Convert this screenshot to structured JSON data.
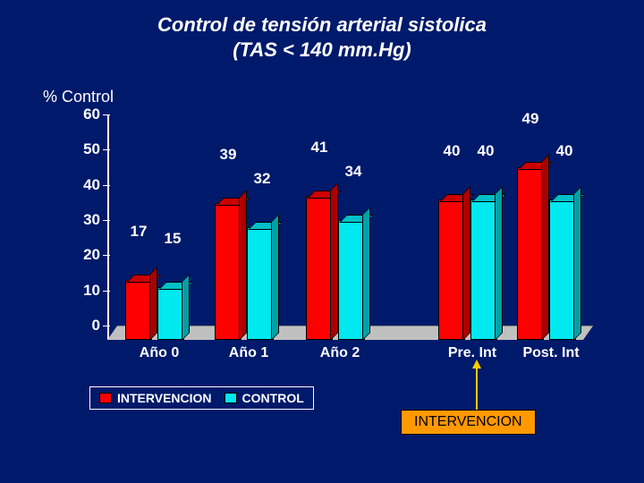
{
  "title_line1": "Control de tensión arterial sistolica",
  "title_line2": "(TAS < 140 mm.Hg)",
  "y_axis_label": "%  Control",
  "chart": {
    "type": "bar",
    "ylim": [
      0,
      60
    ],
    "ytick_step": 10,
    "yticks": [
      "0",
      "10",
      "20",
      "30",
      "40",
      "50",
      "60"
    ],
    "background_color": "#001a6b",
    "floor_color": "#c0c0c0",
    "bar_colors": {
      "intervencion": "#ff0000",
      "control": "#00e8f0"
    },
    "value_label_color": "#ffffff",
    "value_label_fontsize": 17,
    "axis_label_color": "#ffffff",
    "axis_label_fontsize": 16,
    "groups": [
      {
        "label": "Año 0",
        "intervencion": 17,
        "control": 15
      },
      {
        "label": "Año 1",
        "intervencion": 39,
        "control": 32
      },
      {
        "label": "Año 2",
        "intervencion": 41,
        "control": 34
      },
      {
        "label": "Pre. Int",
        "intervencion": 40,
        "control": 40
      },
      {
        "label": "Post. Int",
        "intervencion": 49,
        "control": 40
      }
    ]
  },
  "legend": {
    "series1": {
      "label": "INTERVENCION",
      "color": "#ff0000"
    },
    "series2": {
      "label": "CONTROL",
      "color": "#00e8f0"
    }
  },
  "callout": {
    "label": "INTERVENCION",
    "background": "#ff9900",
    "arrow_color": "#ffcc00"
  }
}
